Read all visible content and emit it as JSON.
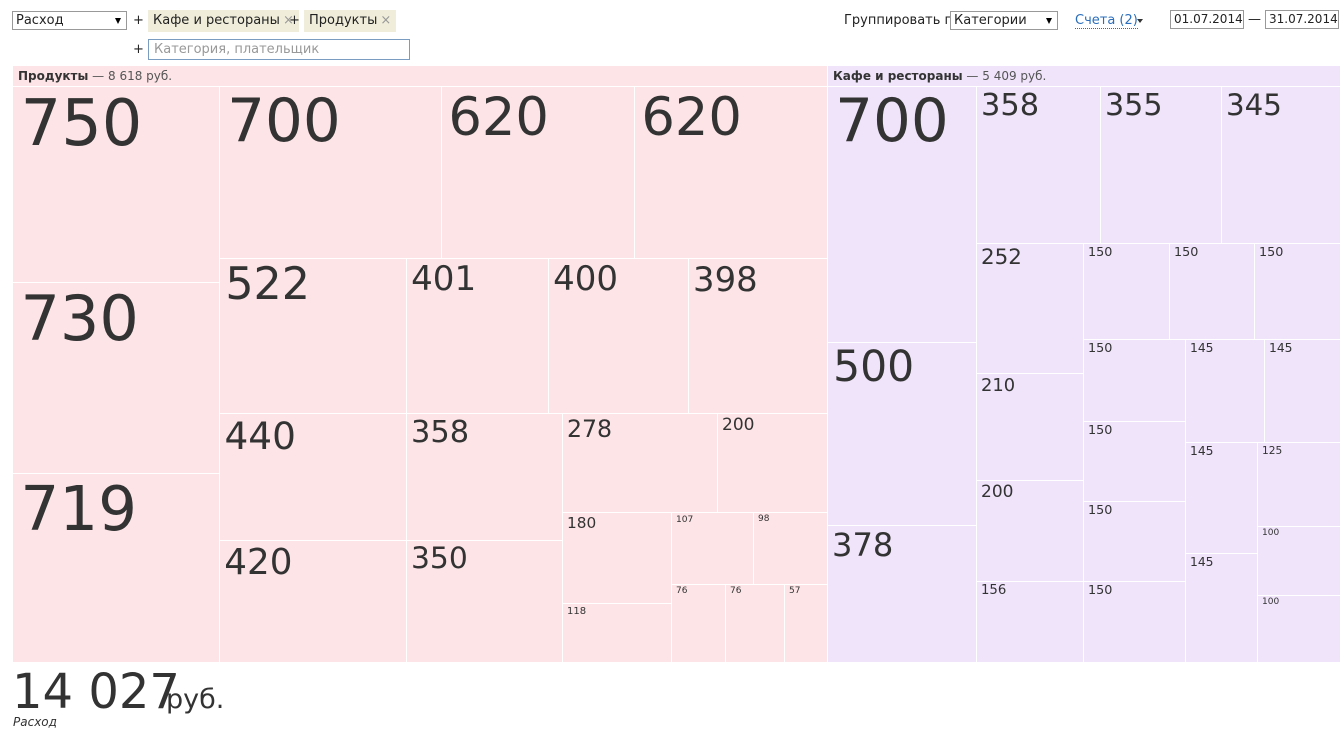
{
  "toolbar": {
    "type_select": "Расход",
    "add_sign": "+",
    "filters": [
      "Кафе и рестораны",
      "Продукты"
    ],
    "remove_icon": "×",
    "search_placeholder": "Категория, плательщик",
    "group_by_label": "Группировать по",
    "group_by_select": "Категории",
    "accounts_link": "Счета (2)",
    "date_from": "01.07.2014",
    "range_dash": "—",
    "date_to": "31.07.2014"
  },
  "treemap": {
    "separator": "—",
    "groups": [
      {
        "name": "Продукты",
        "total": "8 618 руб.",
        "cells": [
          750,
          730,
          719,
          700,
          620,
          620,
          522,
          401,
          400,
          398,
          440,
          420,
          358,
          350,
          278,
          200,
          180,
          118,
          107,
          98,
          76,
          76,
          57
        ]
      },
      {
        "name": "Кафе и рестораны",
        "total": "5 409 руб.",
        "cells": [
          700,
          500,
          378,
          358,
          355,
          345,
          252,
          150,
          150,
          150,
          210,
          200,
          156,
          150,
          150,
          150,
          150,
          145,
          145,
          145,
          145,
          125,
          100,
          100
        ]
      }
    ]
  },
  "footer": {
    "total": "14 027",
    "unit": "руб.",
    "label": "Расход"
  }
}
